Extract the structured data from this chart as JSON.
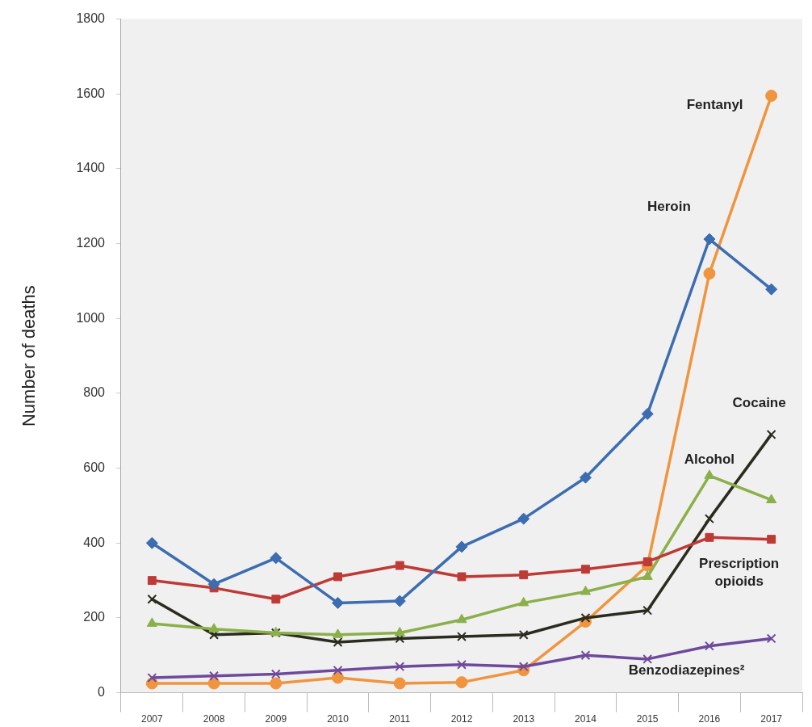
{
  "chart_data": {
    "type": "line",
    "ylabel": "Number of deaths",
    "categories": [
      "2007",
      "2008",
      "2009",
      "2010",
      "2011",
      "2012",
      "2013",
      "2014",
      "2015",
      "2016",
      "2017"
    ],
    "ylim": [
      0,
      1800
    ],
    "yticks": [
      0,
      200,
      400,
      600,
      800,
      1000,
      1200,
      1400,
      1600,
      1800
    ],
    "grid": false,
    "legend": false,
    "series": [
      {
        "name": "Heroin",
        "color": "#3c6db0",
        "marker": "diamond",
        "values": [
          400,
          290,
          360,
          240,
          245,
          390,
          465,
          575,
          745,
          1212,
          1078
        ]
      },
      {
        "name": "Prescription opioids",
        "color": "#be3a36",
        "marker": "square",
        "values": [
          300,
          280,
          250,
          310,
          340,
          310,
          315,
          330,
          350,
          415,
          410
        ]
      },
      {
        "name": "Alcohol",
        "color": "#8bb04a",
        "marker": "triangle",
        "values": [
          185,
          170,
          160,
          155,
          160,
          195,
          240,
          270,
          310,
          580,
          515
        ]
      },
      {
        "name": "Cocaine",
        "color": "#2b2b1f",
        "marker": "cross",
        "values": [
          250,
          155,
          160,
          135,
          145,
          150,
          155,
          200,
          220,
          465,
          690
        ]
      },
      {
        "name": "Benzodiazepines²",
        "color": "#6f4a9c",
        "marker": "cross",
        "values": [
          40,
          45,
          50,
          60,
          70,
          75,
          70,
          100,
          90,
          125,
          145
        ]
      },
      {
        "name": "Fentanyl",
        "color": "#f0953f",
        "marker": "circle",
        "values": [
          25,
          25,
          25,
          40,
          25,
          28,
          60,
          190,
          340,
          1120,
          1595
        ]
      }
    ]
  }
}
